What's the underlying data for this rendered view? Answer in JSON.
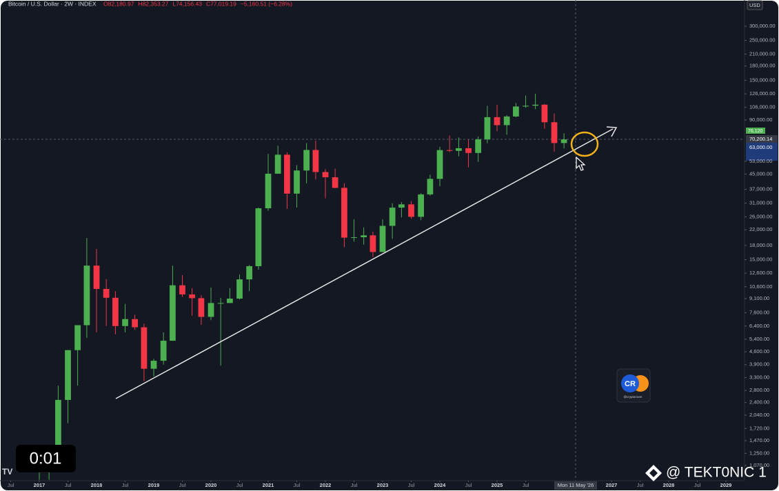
{
  "chart_data": {
    "type": "candlestick",
    "title": "Bitcoin / U.S. Dollar · 2W · INDEX",
    "ohlc_header": [
      "O82,180.97",
      "H82,353.27",
      "L74,156.43",
      "C77,019.19",
      "−5,160.51 (−6.28%)"
    ],
    "currency": "USD",
    "price_tags": [
      "76,120",
      "70,200.14",
      "63,000.00"
    ],
    "crosshair_label": "Mon 11 May '26",
    "log_scale": true,
    "up_color": "#4caf50",
    "down_color": "#f23645",
    "x": [
      2017.0,
      2017.17,
      2017.33,
      2017.5,
      2017.67,
      2017.83,
      2018.0,
      2018.17,
      2018.33,
      2018.5,
      2018.67,
      2018.83,
      2019.0,
      2019.17,
      2019.33,
      2019.5,
      2019.67,
      2019.83,
      2020.0,
      2020.17,
      2020.33,
      2020.5,
      2020.67,
      2020.83,
      2021.0,
      2021.17,
      2021.33,
      2021.5,
      2021.67,
      2021.83,
      2022.0,
      2022.17,
      2022.33,
      2022.5,
      2022.67,
      2022.83,
      2023.0,
      2023.17,
      2023.33,
      2023.5,
      2023.67,
      2023.83,
      2024.0,
      2024.17,
      2024.33,
      2024.5,
      2024.67,
      2024.83,
      2025.0,
      2025.17,
      2025.33,
      2025.5,
      2025.67,
      2025.83,
      2026.0,
      2026.17
    ],
    "open": [
      1000,
      1190,
      1350,
      2480,
      4700,
      6470,
      13900,
      10300,
      9200,
      6400,
      7000,
      6300,
      3700,
      4100,
      5300,
      10800,
      9600,
      9150,
      7200,
      8600,
      8600,
      9100,
      11650,
      13800,
      29000,
      45200,
      57700,
      35000,
      47100,
      61300,
      46200,
      43200,
      37700,
      19900,
      20000,
      20500,
      16550,
      23150,
      29250,
      30500,
      26000,
      34650,
      42300,
      61200,
      60600,
      62700,
      59000,
      70200,
      93400,
      84300,
      94200,
      107100,
      108200,
      109600,
      87500,
      67000
    ],
    "high": [
      1200,
      1350,
      2980,
      4700,
      6470,
      19800,
      17200,
      11700,
      10000,
      8500,
      7400,
      6600,
      4200,
      5900,
      13900,
      12300,
      10400,
      9500,
      10500,
      9200,
      10400,
      12400,
      14000,
      29300,
      58300,
      64800,
      59500,
      50500,
      67000,
      69000,
      48000,
      48200,
      40000,
      25200,
      22700,
      21500,
      25200,
      31000,
      31400,
      31800,
      35200,
      44700,
      63900,
      73800,
      72000,
      70000,
      72900,
      108000,
      109400,
      95700,
      112000,
      123200,
      126200,
      110500,
      97900,
      76000
    ],
    "low": [
      890,
      890,
      1350,
      1840,
      2980,
      5500,
      5900,
      6400,
      5750,
      5900,
      6100,
      3150,
      3350,
      3900,
      5300,
      9300,
      7300,
      6500,
      6900,
      3850,
      8600,
      9000,
      10000,
      13200,
      28100,
      47000,
      28800,
      29300,
      40000,
      42000,
      33000,
      37500,
      17600,
      18900,
      18200,
      15500,
      16500,
      19600,
      25800,
      25400,
      24900,
      34100,
      38500,
      59700,
      56500,
      49000,
      52600,
      66800,
      78000,
      74500,
      93400,
      105300,
      103500,
      80500,
      60000,
      62500
    ],
    "close": [
      1190,
      1350,
      2480,
      4700,
      6470,
      13900,
      10300,
      9200,
      6400,
      7000,
      6300,
      3700,
      4100,
      5300,
      10800,
      9600,
      9150,
      7200,
      8600,
      8600,
      9100,
      11650,
      13800,
      29000,
      45200,
      57700,
      35000,
      47100,
      61300,
      46200,
      43200,
      37700,
      19900,
      20000,
      20500,
      16550,
      23150,
      29250,
      30500,
      26000,
      34650,
      42300,
      61200,
      60600,
      62700,
      59000,
      70200,
      93400,
      84300,
      94200,
      107100,
      108200,
      109600,
      87500,
      67000,
      70200
    ],
    "xlim": [
      2016.313,
      2029.325
    ],
    "ylim": [
      880,
      420000
    ],
    "xticks": [
      {
        "value": 2016.5,
        "label": "Jul"
      },
      2017,
      {
        "value": 2017.5,
        "label": "Jul"
      },
      2018,
      {
        "value": 2018.5,
        "label": "Jul"
      },
      2019,
      {
        "value": 2019.5,
        "label": "Jul"
      },
      2020,
      {
        "value": 2020.5,
        "label": "Jul"
      },
      2021,
      {
        "value": 2021.5,
        "label": "Jul"
      },
      2022,
      {
        "value": 2022.5,
        "label": "Jul"
      },
      2023,
      {
        "value": 2023.5,
        "label": "Jul"
      },
      2024,
      {
        "value": 2024.5,
        "label": "Jul"
      },
      2025,
      {
        "value": 2025.5,
        "label": "Jul"
      },
      2027,
      {
        "value": 2027.5,
        "label": "Jul"
      },
      2028,
      {
        "value": 2028.5,
        "label": "Jul"
      },
      2029
    ],
    "yticks": [
      {
        "value": 300000,
        "label": "300,000.00"
      },
      {
        "value": 250000,
        "label": "250,000.00"
      },
      {
        "value": 210000,
        "label": "210,000.00"
      },
      {
        "value": 180000,
        "label": "180,000.00"
      },
      {
        "value": 150000,
        "label": "150,000.00"
      },
      {
        "value": 126000,
        "label": "126,000.00"
      },
      {
        "value": 106000,
        "label": "106,000.00"
      },
      {
        "value": 90000,
        "label": "90,000.00"
      },
      {
        "value": 53000,
        "label": "53,000.00"
      },
      {
        "value": 45000,
        "label": "45,000.00"
      },
      {
        "value": 37000,
        "label": "37,000.00"
      },
      {
        "value": 31000,
        "label": "31,000.00"
      },
      {
        "value": 26000,
        "label": "26,000.00"
      },
      {
        "value": 22000,
        "label": "22,000.00"
      },
      {
        "value": 18000,
        "label": "18,000.00"
      },
      {
        "value": 15000,
        "label": "15,000.00"
      },
      {
        "value": 12600,
        "label": "12,600.00"
      },
      {
        "value": 10600,
        "label": "10,600.00"
      },
      {
        "value": 9100,
        "label": "9,100.00"
      },
      {
        "value": 7600,
        "label": "7,600.00"
      },
      {
        "value": 6400,
        "label": "6,400.00"
      },
      {
        "value": 5400,
        "label": "5,400.00"
      },
      {
        "value": 4600,
        "label": "4,600.00"
      },
      {
        "value": 3900,
        "label": "3,900.00"
      },
      {
        "value": 3300,
        "label": "3,300.00"
      },
      {
        "value": 2800,
        "label": "2,800.00"
      },
      {
        "value": 2400,
        "label": "2,400.00"
      },
      {
        "value": 2040,
        "label": "2,040.00"
      },
      {
        "value": 1720,
        "label": "1,720.00"
      },
      {
        "value": 1470,
        "label": "1,470.00"
      },
      {
        "value": 1250,
        "label": "1,250.00"
      },
      {
        "value": 1070,
        "label": "1,070.00"
      }
    ],
    "grid": false
  },
  "overlay": {
    "timer": "0:01",
    "watermark": "@ TEKT0NIC 1",
    "logo_text": "CR",
    "logo_handle": "@cryptorover"
  }
}
